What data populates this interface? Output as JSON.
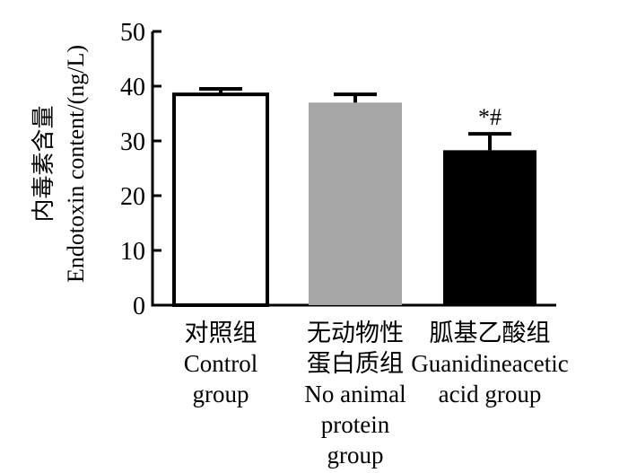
{
  "chart_data": {
    "type": "bar",
    "ylabel": [
      "内毒素含量",
      "Endotoxin content/(ng/L)"
    ],
    "ylim": [
      0,
      50
    ],
    "yticks": [
      0,
      10,
      20,
      30,
      40,
      50
    ],
    "grid": false,
    "categories": [
      [
        "对照组",
        "Control",
        "group"
      ],
      [
        "无动物性",
        "蛋白质组",
        "No animal",
        "protein",
        "group"
      ],
      [
        "胍基乙酸组",
        "Guanidineacetic",
        "acid group"
      ]
    ],
    "values": [
      38.5,
      37.0,
      28.3
    ],
    "errors": [
      1.0,
      1.5,
      3.0
    ],
    "colors": [
      "#ffffff",
      "#a6a6a6",
      "#000000"
    ],
    "annotations": [
      "",
      "",
      "*#"
    ]
  }
}
